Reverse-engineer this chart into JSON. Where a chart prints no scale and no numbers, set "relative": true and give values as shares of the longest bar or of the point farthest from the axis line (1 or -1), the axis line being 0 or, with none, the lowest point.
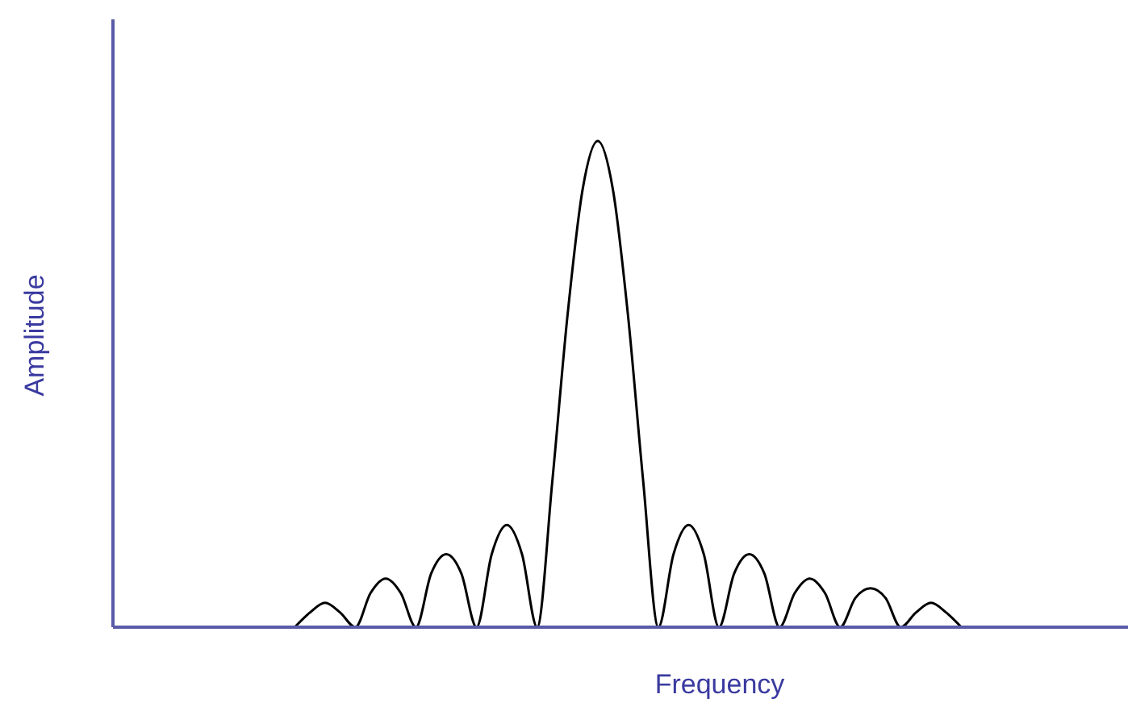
{
  "chart_data": {
    "type": "line",
    "xlabel": "Frequency",
    "ylabel": "Amplitude",
    "relative": true,
    "grid": false,
    "legend": false,
    "marker": "none",
    "line_style": "solid",
    "categories": [
      null,
      null,
      null,
      null,
      null,
      null,
      null,
      null,
      null,
      null,
      null,
      null,
      null,
      null,
      null,
      null,
      null,
      null,
      null,
      null,
      null,
      null,
      null,
      null,
      null,
      null,
      null,
      null,
      null,
      null,
      null,
      null,
      null,
      null,
      null,
      null,
      null,
      null,
      null,
      null,
      null,
      null,
      null,
      null,
      null,
      null,
      null,
      null,
      null,
      null,
      null,
      null,
      null,
      null,
      null,
      null,
      null,
      null,
      null,
      null,
      null,
      null,
      null,
      null,
      null,
      null,
      null,
      null
    ],
    "series": [
      {
        "color": "#000000",
        "values": [
          null,
          null,
          null,
          null,
          null,
          null,
          null,
          null,
          null,
          null,
          null,
          null,
          0,
          0.03,
          0.05,
          0.03,
          0,
          0.07,
          0.1,
          0.07,
          0,
          0.11,
          0.15,
          0.11,
          0,
          0.15,
          0.21,
          0.15,
          0,
          0.3,
          0.64,
          0.9,
          1,
          0.9,
          0.64,
          0.3,
          0,
          0.15,
          0.21,
          0.15,
          0,
          0.11,
          0.15,
          0.11,
          0,
          0.07,
          0.1,
          0.07,
          0,
          0.06,
          0.08,
          0.06,
          0,
          0.03,
          0.05,
          0.03,
          0,
          null,
          null,
          null,
          null,
          null,
          null,
          null,
          null,
          null,
          null,
          null
        ]
      }
    ]
  }
}
